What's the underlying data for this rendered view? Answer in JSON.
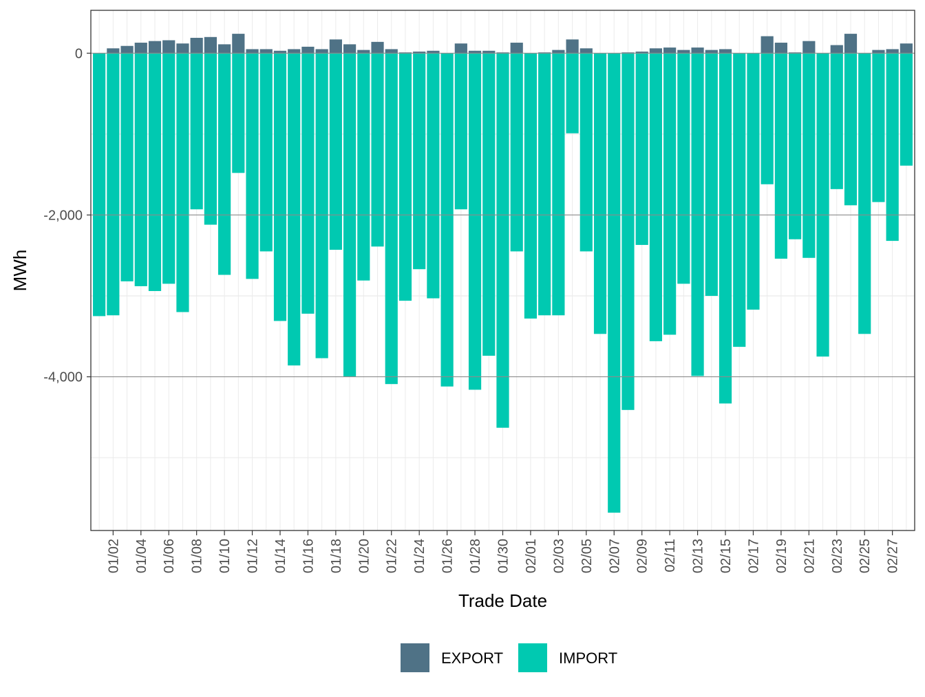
{
  "chart_data": {
    "type": "bar",
    "stacked": true,
    "xlabel": "Trade Date",
    "ylabel": "MWh",
    "ylim": [
      -5900,
      530
    ],
    "yticks": [
      0,
      -2000,
      -4000
    ],
    "ytick_labels": [
      "0",
      "-2,000",
      "-4,000"
    ],
    "grid": true,
    "legend_position": "bottom",
    "categories": [
      "01/01",
      "01/02",
      "01/03",
      "01/04",
      "01/05",
      "01/06",
      "01/07",
      "01/08",
      "01/09",
      "01/10",
      "01/11",
      "01/12",
      "01/13",
      "01/14",
      "01/15",
      "01/16",
      "01/17",
      "01/18",
      "01/19",
      "01/20",
      "01/21",
      "01/22",
      "01/23",
      "01/24",
      "01/25",
      "01/26",
      "01/27",
      "01/28",
      "01/29",
      "01/30",
      "01/31",
      "02/01",
      "02/02",
      "02/03",
      "02/04",
      "02/05",
      "02/06",
      "02/07",
      "02/08",
      "02/09",
      "02/10",
      "02/11",
      "02/12",
      "02/13",
      "02/14",
      "02/15",
      "02/16",
      "02/17",
      "02/18",
      "02/19",
      "02/20",
      "02/21",
      "02/22",
      "02/23",
      "02/24",
      "02/25",
      "02/26",
      "02/27",
      "02/28"
    ],
    "xtick_labels": [
      "01/02",
      "01/04",
      "01/06",
      "01/08",
      "01/10",
      "01/12",
      "01/14",
      "01/16",
      "01/18",
      "01/20",
      "01/22",
      "01/24",
      "01/26",
      "01/28",
      "01/30",
      "02/01",
      "02/03",
      "02/05",
      "02/07",
      "02/09",
      "02/11",
      "02/13",
      "02/15",
      "02/17",
      "02/19",
      "02/21",
      "02/23",
      "02/25",
      "02/27"
    ],
    "series": [
      {
        "name": "EXPORT",
        "color": "#4f7286",
        "values": [
          0,
          60,
          90,
          130,
          150,
          160,
          120,
          190,
          200,
          110,
          240,
          50,
          50,
          30,
          50,
          80,
          50,
          170,
          110,
          40,
          140,
          50,
          10,
          20,
          30,
          0,
          120,
          30,
          30,
          10,
          130,
          0,
          10,
          40,
          170,
          60,
          0,
          0,
          10,
          20,
          60,
          70,
          40,
          70,
          40,
          50,
          0,
          0,
          210,
          130,
          10,
          150,
          0,
          100,
          240,
          0,
          40,
          50,
          120
        ]
      },
      {
        "name": "IMPORT",
        "color": "#00c9b1",
        "values": [
          -3250,
          -3240,
          -2820,
          -2880,
          -2940,
          -2850,
          -3200,
          -1930,
          -2120,
          -2740,
          -1480,
          -2790,
          -2450,
          -3310,
          -3860,
          -3220,
          -3770,
          -2430,
          -4000,
          -2810,
          -2390,
          -4090,
          -3060,
          -2670,
          -3030,
          -4120,
          -1930,
          -4160,
          -3740,
          -4630,
          -2450,
          -3280,
          -3240,
          -3240,
          -990,
          -2450,
          -3470,
          -5680,
          -4410,
          -2370,
          -3560,
          -3480,
          -2850,
          -3990,
          -3000,
          -4330,
          -3630,
          -3170,
          -1620,
          -2540,
          -2300,
          -2530,
          -3750,
          -1680,
          -1880,
          -3470,
          -1840,
          -2320,
          -1390
        ]
      }
    ]
  }
}
